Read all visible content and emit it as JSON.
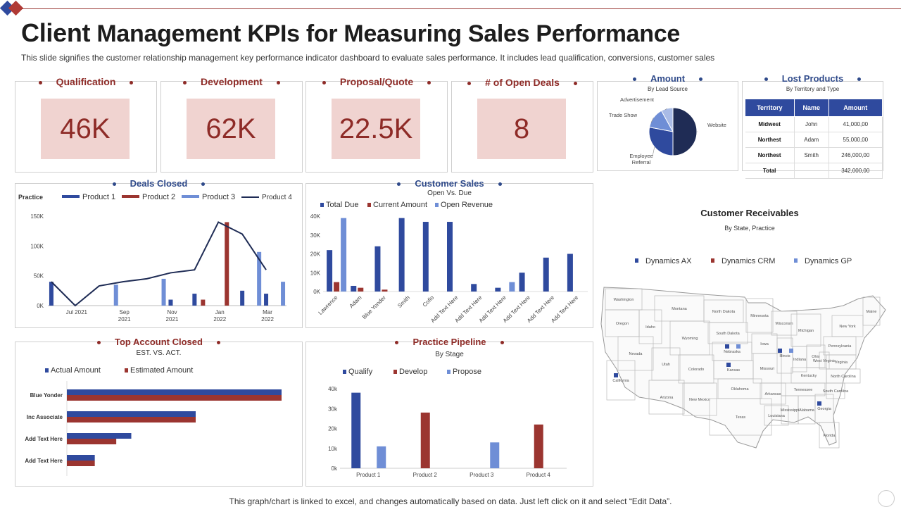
{
  "page": {
    "title_first": "Client",
    "title_rest": "Management KPIs for Measuring Sales Performance",
    "subtitle": "This slide signifies the customer relationship management key performance indicator dashboard to evaluate sales performance. It includes lead qualification, conversions, customer sales",
    "footer": "This graph/chart is linked to excel, and changes automatically based on data. Just left click on it and select “Edit Data”."
  },
  "kpis": [
    {
      "label": "Qualification",
      "value": "46K"
    },
    {
      "label": "Development",
      "value": "62K"
    },
    {
      "label": "Proposal/Quote",
      "value": "22.5K"
    },
    {
      "label": "# of Open Deals",
      "value": "8"
    }
  ],
  "colors": {
    "navy": "#2f4a9e",
    "red": "#9b3530",
    "light_blue": "#6f8ed6",
    "dark_line": "#1f2c55",
    "kpi_fill": "#f0d3d0",
    "accent_red": "#8e2b27",
    "accent_blue": "#2f4a8a"
  },
  "lost_products": {
    "title": "Lost Products",
    "subtitle": "By Territory and Type",
    "headers": [
      "Territory",
      "Name",
      "Amount"
    ],
    "rows": [
      [
        "Midwest",
        "John",
        "41,000,00"
      ],
      [
        "Northest",
        "Adam",
        "55,000,00"
      ],
      [
        "Northest",
        "Smith",
        "246,000,00"
      ],
      [
        "Total",
        "",
        "342,000,00"
      ]
    ]
  },
  "receivables": {
    "title": "Customer Receivables",
    "subtitle": "By State, Practice",
    "legend": [
      "Dynamics AX",
      "Dynamics CRM",
      "Dynamics GP"
    ],
    "states": [
      "Washington",
      "Oregon",
      "Idaho",
      "Montana",
      "Wyoming",
      "Nevada",
      "California",
      "Utah",
      "Colorado",
      "Arizona",
      "New Mexico",
      "North Dakota",
      "South Dakota",
      "Nebraska",
      "Kansas",
      "Oklahoma",
      "Texas",
      "Minnesota",
      "Iowa",
      "Missouri",
      "Arkansas",
      "Louisiana",
      "Wisconsin",
      "Illinois",
      "Michigan",
      "Indiana",
      "Ohio",
      "Kentucky",
      "Tennessee",
      "Mississippi",
      "Alabama",
      "Georgia",
      "Florida",
      "South Carolina",
      "North Carolina",
      "Virginia",
      "West Virginia",
      "Pennsylvania",
      "New York",
      "Maine"
    ]
  },
  "chart_data": [
    {
      "id": "amount",
      "type": "pie",
      "title": "Amount",
      "subtitle": "By Lead Source",
      "categories": [
        "Website",
        "Employee Referral",
        "Trade Show",
        "Advertisement"
      ],
      "values": [
        50,
        28,
        14,
        8
      ],
      "colors": [
        "#1f2c55",
        "#2f4a9e",
        "#6f8ed6",
        "#a9bbe6"
      ]
    },
    {
      "id": "deals_closed",
      "type": "bar",
      "title": "Deals Closed",
      "ylabel": "Practice",
      "ylim": [
        0,
        150000
      ],
      "yticks": [
        {
          "v": 0,
          "label": "0K"
        },
        {
          "v": 50000,
          "label": "50K"
        },
        {
          "v": 100000,
          "label": "100K"
        },
        {
          "v": 150000,
          "label": "150K"
        }
      ],
      "x_ticks": [
        {
          "i": 1,
          "label": "Jul 2021"
        },
        {
          "i": 3,
          "label": "Sep 2021"
        },
        {
          "i": 5,
          "label": "Nov 2021"
        },
        {
          "i": 7,
          "label": "Jan 2022"
        },
        {
          "i": 9,
          "label": "Mar 2022"
        }
      ],
      "periods": 10,
      "series": [
        {
          "name": "Product 1",
          "color": "#2f4a9e",
          "values": [
            40000,
            0,
            0,
            0,
            0,
            10000,
            20000,
            0,
            25000,
            20000
          ]
        },
        {
          "name": "Product 2",
          "color": "#9b3530",
          "values": [
            0,
            0,
            0,
            0,
            0,
            0,
            10000,
            140000,
            0,
            0
          ]
        },
        {
          "name": "Product 3",
          "color": "#6f8ed6",
          "values": [
            0,
            0,
            35000,
            0,
            45000,
            0,
            0,
            0,
            90000,
            40000
          ]
        },
        {
          "name": "Product 4",
          "type": "line",
          "color": "#1f2c55",
          "values": [
            40000,
            0,
            33000,
            40000,
            45000,
            55000,
            60000,
            140000,
            120000,
            60000
          ]
        }
      ]
    },
    {
      "id": "customer_sales",
      "type": "bar",
      "title": "Customer Sales",
      "subtitle": "Open Vs. Due",
      "ylim": [
        0,
        40000
      ],
      "yticks": [
        {
          "v": 0,
          "label": "0K"
        },
        {
          "v": 10000,
          "label": "10K"
        },
        {
          "v": 20000,
          "label": "20K"
        },
        {
          "v": 30000,
          "label": "30K"
        },
        {
          "v": 40000,
          "label": "40K"
        }
      ],
      "categories": [
        "Lawrence",
        "Adam",
        "Blue Yonder",
        "Smith",
        "Cofio",
        "Add Text Here",
        "Add Text Here",
        "Add Text Here",
        "Add Text Here",
        "Add Text Here",
        "Add Text Here"
      ],
      "series": [
        {
          "name": "Total Due",
          "color": "#2f4a9e",
          "values": [
            22000,
            3000,
            24000,
            39000,
            37000,
            37000,
            4000,
            2000,
            10000,
            18000,
            20000
          ]
        },
        {
          "name": "Current Amount",
          "color": "#9b3530",
          "values": [
            5000,
            2000,
            1000,
            0,
            0,
            0,
            0,
            0,
            0,
            0,
            0
          ]
        },
        {
          "name": "Open Revenue",
          "color": "#6f8ed6",
          "values": [
            39000,
            0,
            0,
            0,
            0,
            0,
            0,
            5000,
            0,
            0,
            0
          ]
        }
      ]
    },
    {
      "id": "top_account_closed",
      "type": "bar",
      "orientation": "horizontal",
      "title": "Top Account Closed",
      "subtitle": "EST. VS. ACT.",
      "categories": [
        "Blue Yonder",
        "Inc Associate",
        "Add Text Here",
        "Add Text Here"
      ],
      "xlim": [
        0,
        100
      ],
      "series": [
        {
          "name": "Actual Amount",
          "color": "#2f4a9e",
          "values": [
            100,
            60,
            30,
            13
          ]
        },
        {
          "name": "Estimated Amount",
          "color": "#9b3530",
          "values": [
            100,
            60,
            23,
            13
          ]
        }
      ]
    },
    {
      "id": "practice_pipeline",
      "type": "bar",
      "title": "Practice Pipeline",
      "subtitle": "By Stage",
      "ylim": [
        0,
        40000
      ],
      "yticks": [
        {
          "v": 0,
          "label": "0k"
        },
        {
          "v": 10000,
          "label": "10k"
        },
        {
          "v": 20000,
          "label": "20k"
        },
        {
          "v": 30000,
          "label": "30k"
        },
        {
          "v": 40000,
          "label": "40k"
        }
      ],
      "categories": [
        "Product 1",
        "Product 2",
        "Product 3",
        "Product 4"
      ],
      "series": [
        {
          "name": "Qualify",
          "color": "#2f4a9e",
          "values": [
            38000,
            0,
            0,
            0
          ]
        },
        {
          "name": "Develop",
          "color": "#9b3530",
          "values": [
            0,
            28000,
            0,
            22000
          ]
        },
        {
          "name": "Propose",
          "color": "#6f8ed6",
          "values": [
            11000,
            0,
            13000,
            0
          ]
        }
      ]
    },
    {
      "id": "customer_receivables",
      "type": "map",
      "title": "Customer Receivables",
      "subtitle": "By State, Practice",
      "series": [
        {
          "name": "Dynamics AX",
          "color": "#2f4a9e",
          "states": [
            "California",
            "Nebraska",
            "Kansas",
            "Illinois",
            "Georgia"
          ]
        },
        {
          "name": "Dynamics CRM",
          "color": "#9b3530",
          "states": []
        },
        {
          "name": "Dynamics GP",
          "color": "#6f8ed6",
          "states": [
            "Nebraska",
            "Illinois"
          ]
        }
      ]
    }
  ]
}
